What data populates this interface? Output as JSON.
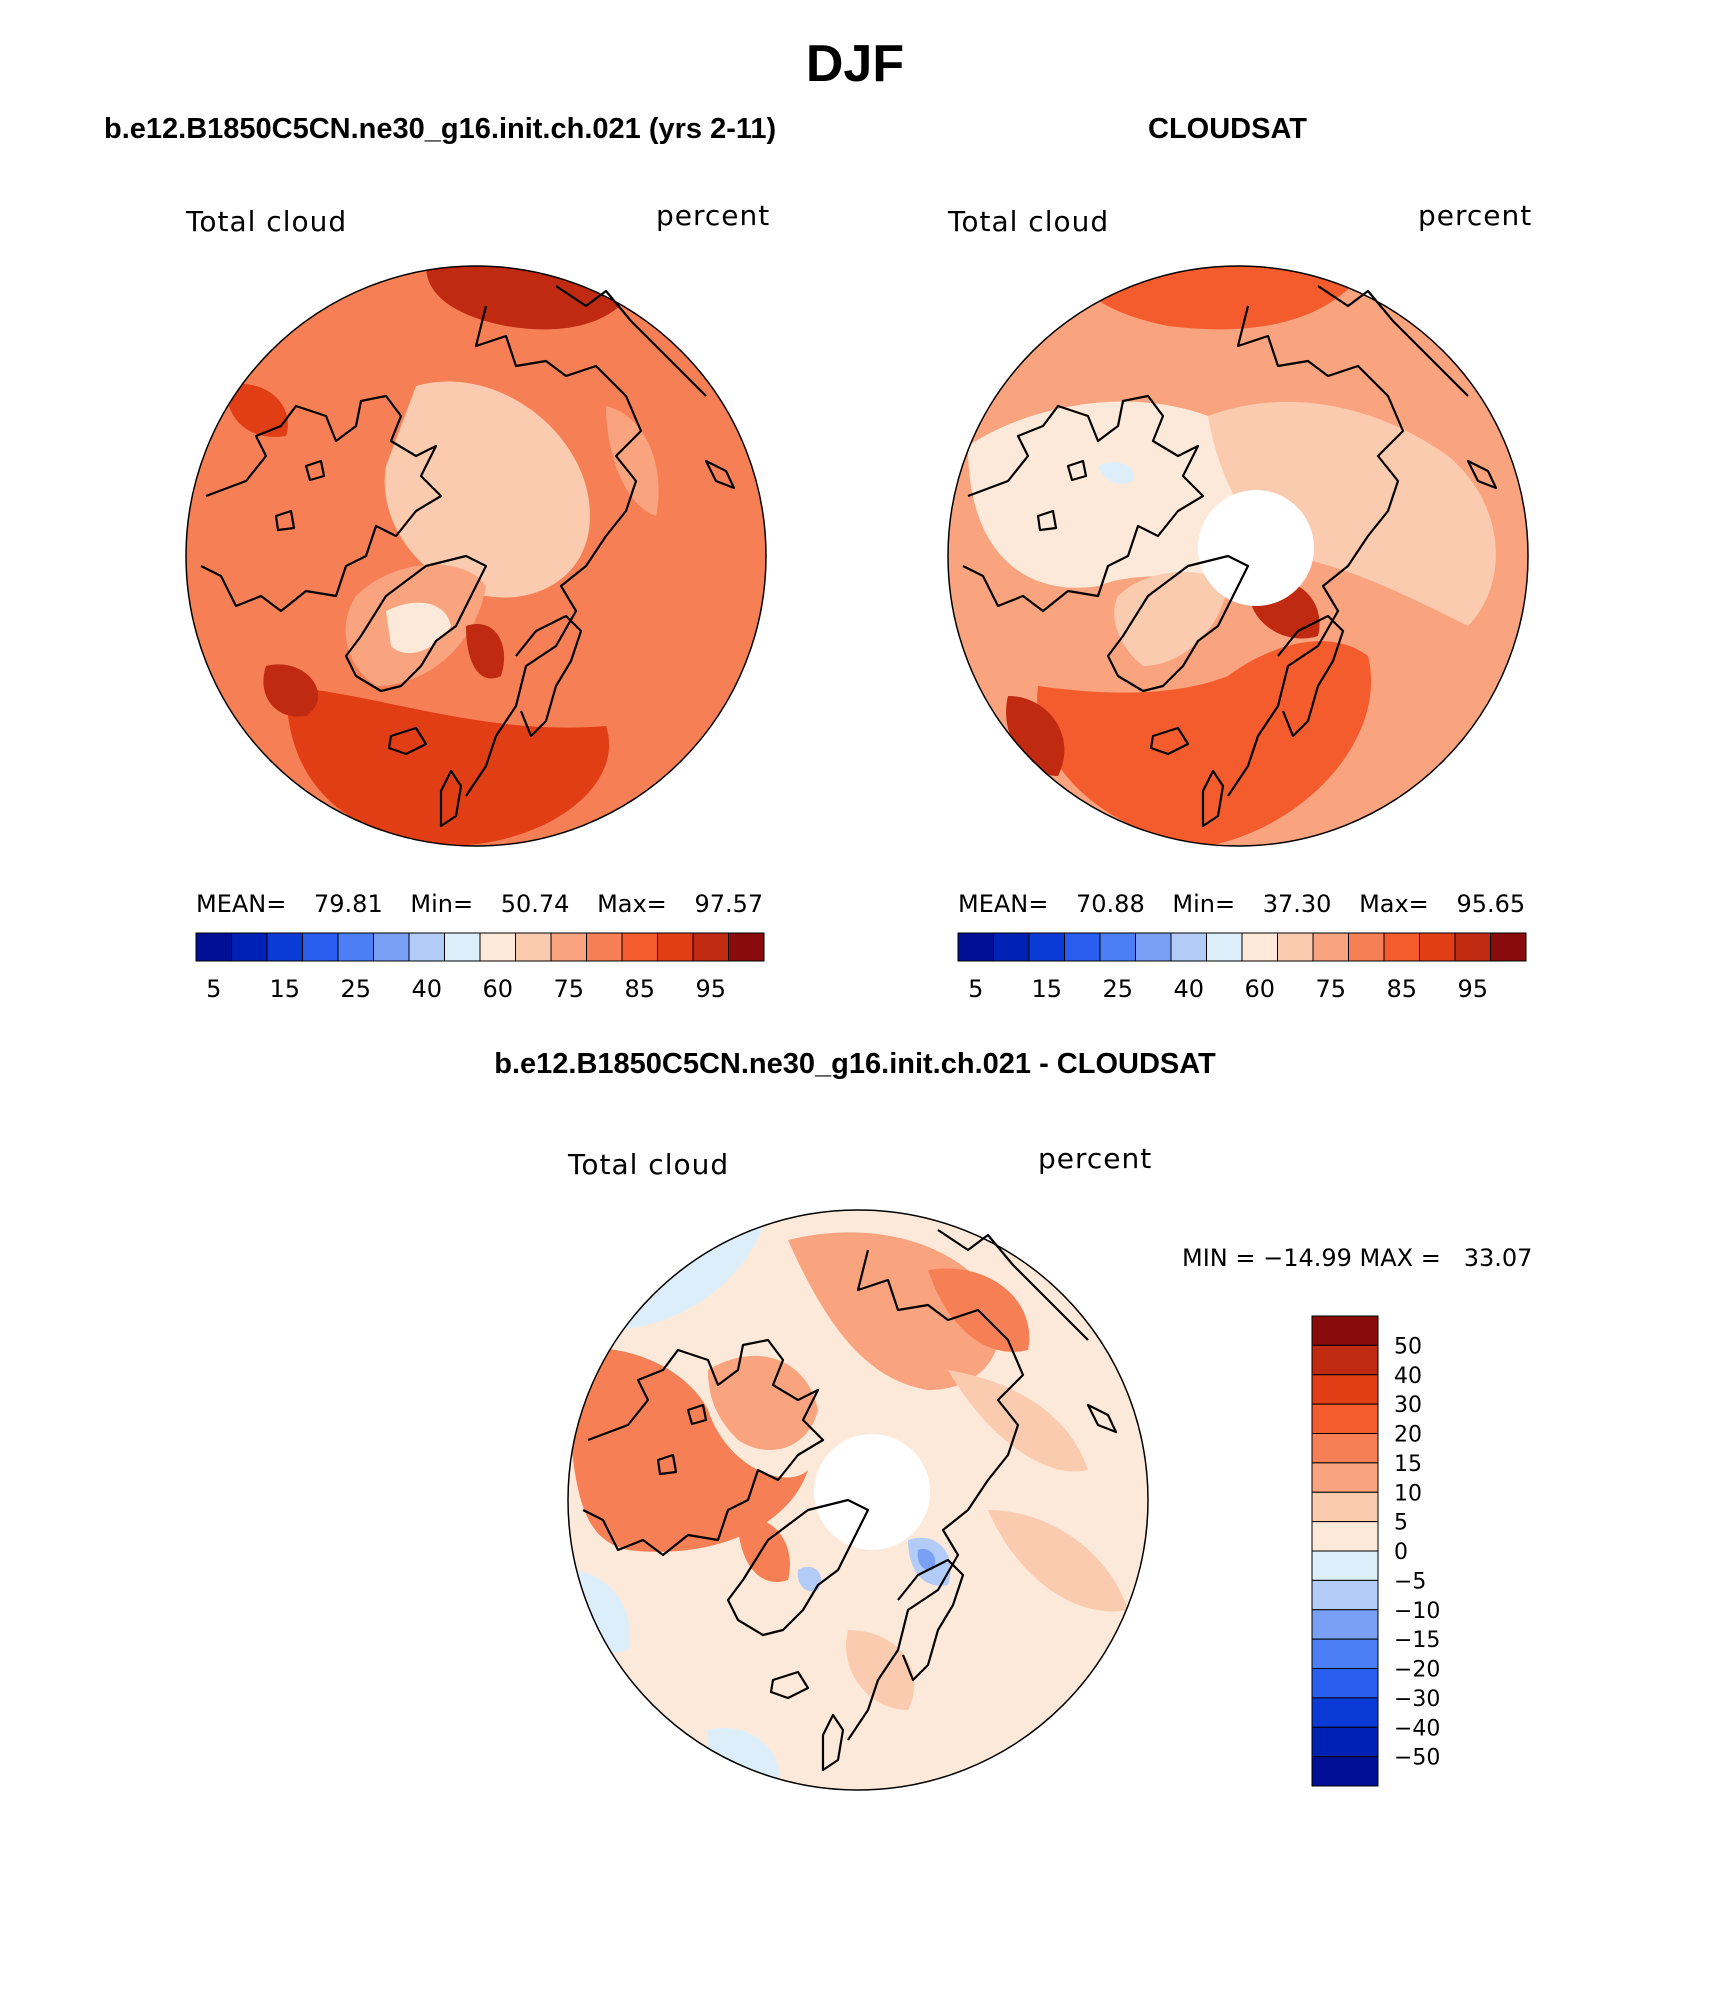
{
  "page": {
    "season": "DJF",
    "model_title": "b.e12.B1850C5CN.ne30_g16.init.ch.021 (yrs 2-11)",
    "obs_title": "CLOUDSAT",
    "diff_title": "b.e12.B1850C5CN.ne30_g16.init.ch.021 - CLOUDSAT"
  },
  "chart_data": [
    {
      "type": "heatmap",
      "projection": "polar-stereographic north",
      "title": "b.e12.B1850C5CN.ne30_g16.init.ch.021 (yrs 2-11)",
      "variable": "Total cloud",
      "units": "percent",
      "stats": {
        "mean_label": "MEAN=",
        "mean": "79.81",
        "min_label": "Min=",
        "min": "50.74",
        "max_label": "Max=",
        "max": "97.57"
      },
      "colorbar": {
        "ticks": [
          "5",
          "15",
          "25",
          "40",
          "60",
          "75",
          "85",
          "95"
        ],
        "colors": [
          "#000f96",
          "#0022b4",
          "#0b3bd6",
          "#2a5ef0",
          "#4c7ff5",
          "#7aa0f5",
          "#b3ccf7",
          "#dceefa",
          "#fde9d9",
          "#fbcbb0",
          "#f9a37f",
          "#f67f56",
          "#f45c2e",
          "#e23e15",
          "#bf2a10",
          "#8a0b0b"
        ]
      },
      "field_colors": {
        "land_low": "#fde9d9",
        "arctic": "#fbcbb0",
        "mid": "#f9a37f",
        "ocean": "#f67f56",
        "storm": "#e23e15",
        "peak": "#bf2a10"
      }
    },
    {
      "type": "heatmap",
      "projection": "polar-stereographic north",
      "title": "CLOUDSAT",
      "variable": "Total cloud",
      "units": "percent",
      "stats": {
        "mean_label": "MEAN=",
        "mean": "70.88",
        "min_label": "Min=",
        "min": "37.30",
        "max_label": "Max=",
        "max": "95.65"
      },
      "colorbar": {
        "ticks": [
          "5",
          "15",
          "25",
          "40",
          "60",
          "75",
          "85",
          "95"
        ],
        "colors": [
          "#000f96",
          "#0022b4",
          "#0b3bd6",
          "#2a5ef0",
          "#4c7ff5",
          "#7aa0f5",
          "#b3ccf7",
          "#dceefa",
          "#fde9d9",
          "#fbcbb0",
          "#f9a37f",
          "#f67f56",
          "#f45c2e",
          "#e23e15",
          "#bf2a10",
          "#8a0b0b"
        ]
      },
      "field_colors": {
        "land_low": "#fde9d9",
        "arctic": "#fde9d9",
        "mid": "#fbcbb0",
        "ocean": "#f9a37f",
        "storm": "#f45c2e",
        "peak": "#bf2a10",
        "cold": "#dceefa"
      },
      "missing_polar_cap": true
    },
    {
      "type": "heatmap",
      "projection": "polar-stereographic north",
      "title": "b.e12.B1850C5CN.ne30_g16.init.ch.021 - CLOUDSAT",
      "variable": "Total cloud",
      "units": "percent",
      "stats": {
        "text": "MIN = −14.99 MAX =   33.07",
        "min": "-14.99",
        "max": "33.07"
      },
      "colorbar": {
        "orientation": "vertical",
        "ticks": [
          "50",
          "40",
          "30",
          "20",
          "15",
          "10",
          "5",
          "0",
          "−5",
          "−10",
          "−15",
          "−20",
          "−30",
          "−40",
          "−50"
        ],
        "colors": [
          "#8a0b0b",
          "#bf2a10",
          "#e23e15",
          "#f45c2e",
          "#f67f56",
          "#f9a37f",
          "#fbcbb0",
          "#fde9d9",
          "#dceefa",
          "#b3ccf7",
          "#7aa0f5",
          "#4c7ff5",
          "#2a5ef0",
          "#0b3bd6",
          "#0022b4",
          "#000f96"
        ]
      },
      "field_colors": {
        "base": "#fde9d9",
        "warm": "#fbcbb0",
        "mid": "#f9a37f",
        "hot": "#f67f56",
        "cool": "#dceefa",
        "blue": "#b3ccf7",
        "deep": "#7aa0f5"
      },
      "missing_polar_cap": true
    }
  ]
}
